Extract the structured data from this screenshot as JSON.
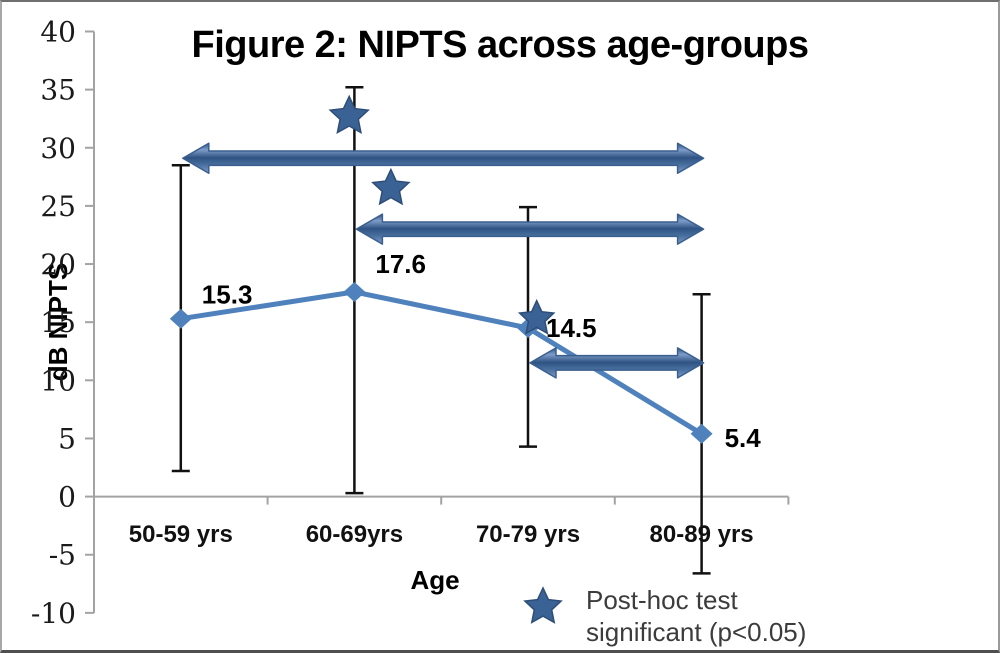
{
  "chart_data": {
    "type": "line",
    "title": "Figure 2: NIPTS across age-groups",
    "xlabel": "Age",
    "ylabel": "dB NIPTS",
    "categories": [
      "50-59 yrs",
      "60-69yrs",
      "70-79 yrs",
      "80-89 yrs"
    ],
    "series": [
      {
        "name": "NIPTS",
        "values": [
          15.3,
          17.6,
          14.5,
          5.4
        ]
      }
    ],
    "data_labels": [
      "15.3",
      "17.6",
      "14.5",
      "5.4"
    ],
    "error_bars": [
      {
        "low": 2.2,
        "high": 28.5
      },
      {
        "low": 0.3,
        "high": 35.2
      },
      {
        "low": 4.3,
        "high": 24.9
      },
      {
        "low": -6.6,
        "high": 17.4
      }
    ],
    "significance_arrows": [
      {
        "from_group": 0,
        "to_group": 3,
        "at_value": 29.1
      },
      {
        "from_group": 1,
        "to_group": 3,
        "at_value": 23.0
      },
      {
        "from_group": 2,
        "to_group": 3,
        "at_value": 11.5
      }
    ],
    "significance_stars": [
      {
        "x_group": 1.47,
        "at_value": 32.7
      },
      {
        "x_group": 1.71,
        "at_value": 26.5
      },
      {
        "x_group": 2.55,
        "at_value": 15.3
      }
    ],
    "ylim": [
      -10,
      40
    ],
    "ytick_step": 5,
    "grid": false,
    "legend": {
      "symbol": "star",
      "label_line1": "Post-hoc test",
      "label_line2": "significant (p<0.05)",
      "position": "bottom-right"
    }
  },
  "colors": {
    "line": "#4F81BD",
    "marker": "#4F81BD",
    "arrow_dark": "#2F5484",
    "arrow_mid": "#486F9F",
    "arrow_light": "#7E9CC8",
    "arrow_border": "#3A5F8F",
    "star": "#3B6294",
    "star_border": "#2E4E78",
    "error_bar": "#111111",
    "axis": "#A3A3A3",
    "tick_label": "#1a1a1a",
    "legend_text": "#3c3c3c"
  }
}
